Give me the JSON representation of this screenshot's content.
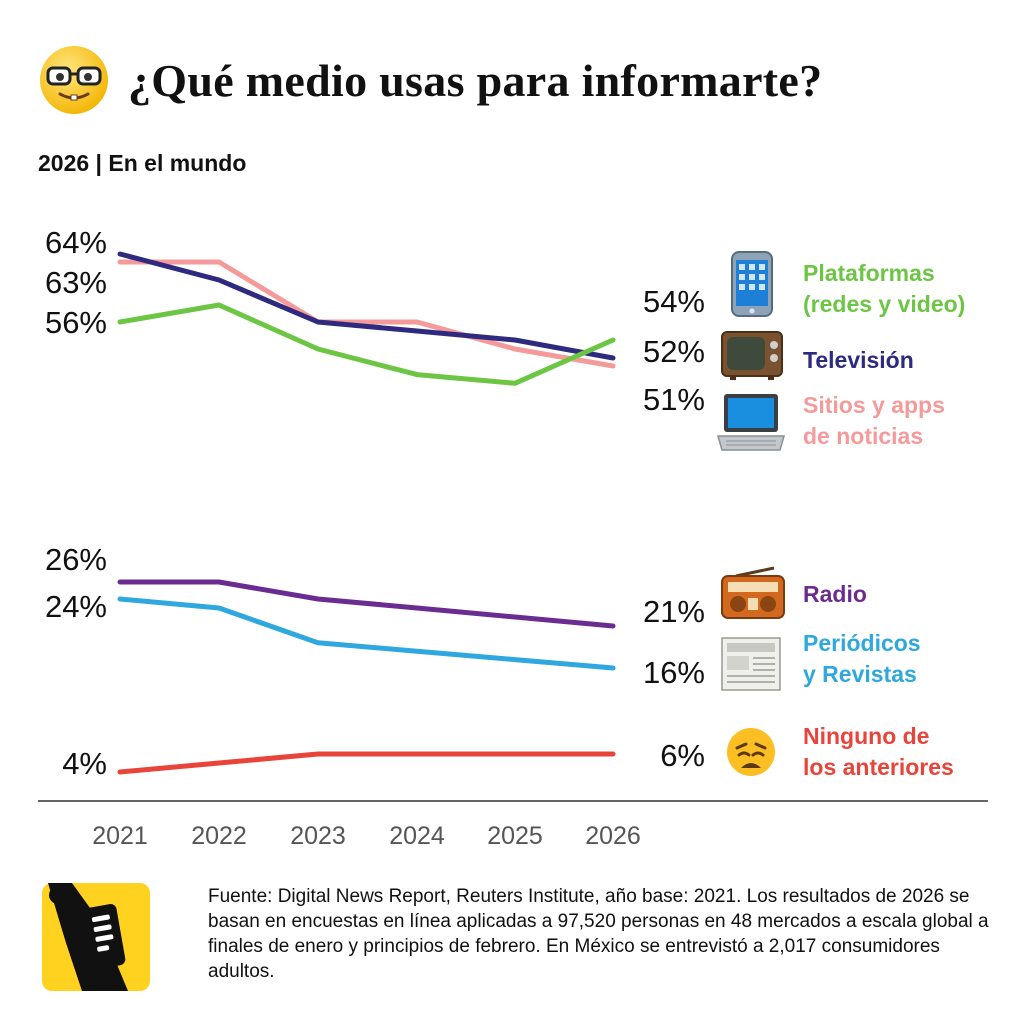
{
  "header": {
    "title": "¿Qué medio usas para informarte?",
    "subtitle": "2026 | En el mundo",
    "title_icon": "nerd-face-emoji"
  },
  "chart_data": {
    "type": "line",
    "x": [
      "2021",
      "2022",
      "2023",
      "2024",
      "2025",
      "2026"
    ],
    "series": [
      {
        "name": "Plataformas (redes y video)",
        "label_lines": [
          "Plataformas",
          "(redes y video)"
        ],
        "color": "#6cc644",
        "icon": "smartphone-icon",
        "values": [
          56,
          59,
          53,
          50,
          49,
          54
        ],
        "start_label": "56%",
        "end_label": "54%"
      },
      {
        "name": "Televisión",
        "label_lines": [
          "Televisión"
        ],
        "color": "#2e2a7f",
        "icon": "television-icon",
        "values": [
          64,
          61,
          56,
          55,
          54,
          52
        ],
        "start_label": "64%",
        "end_label": "52%"
      },
      {
        "name": "Sitios y apps de noticias",
        "label_lines": [
          "Sitios y apps",
          "de noticias"
        ],
        "color": "#f59a9a",
        "icon": "laptop-icon",
        "values": [
          63,
          63,
          56,
          56,
          53,
          51
        ],
        "start_label": "63%",
        "end_label": "51%"
      },
      {
        "name": "Radio",
        "label_lines": [
          "Radio"
        ],
        "color": "#6b2c91",
        "icon": "radio-icon",
        "values": [
          26,
          26,
          24,
          23,
          22,
          21
        ],
        "start_label": "26%",
        "end_label": "21%"
      },
      {
        "name": "Periódicos y Revistas",
        "label_lines": [
          "Periódicos",
          "y Revistas"
        ],
        "color": "#2ea8de",
        "icon": "newspaper-icon",
        "values": [
          24,
          23,
          19,
          18,
          17,
          16
        ],
        "start_label": "24%",
        "end_label": "16%"
      },
      {
        "name": "Ninguno de los anteriores",
        "label_lines": [
          "Ninguno de",
          "los anteriores"
        ],
        "color": "#e8443a",
        "icon": "weary-face-icon",
        "values": [
          4,
          5,
          6,
          6,
          6,
          6
        ],
        "start_label": "4%",
        "end_label": "6%"
      }
    ]
  },
  "footer": {
    "source": "Fuente: Digital News Report, Reuters Institute, año base: 2021. Los resultados de 2026 se basan en encuestas en línea aplicadas a 97,520 personas en 48 mercados a escala global a finales de enero y principios de febrero. En México se entrevistó a 2,017 consumidores adultos.",
    "logo_icon": "brand-logo-icon"
  }
}
